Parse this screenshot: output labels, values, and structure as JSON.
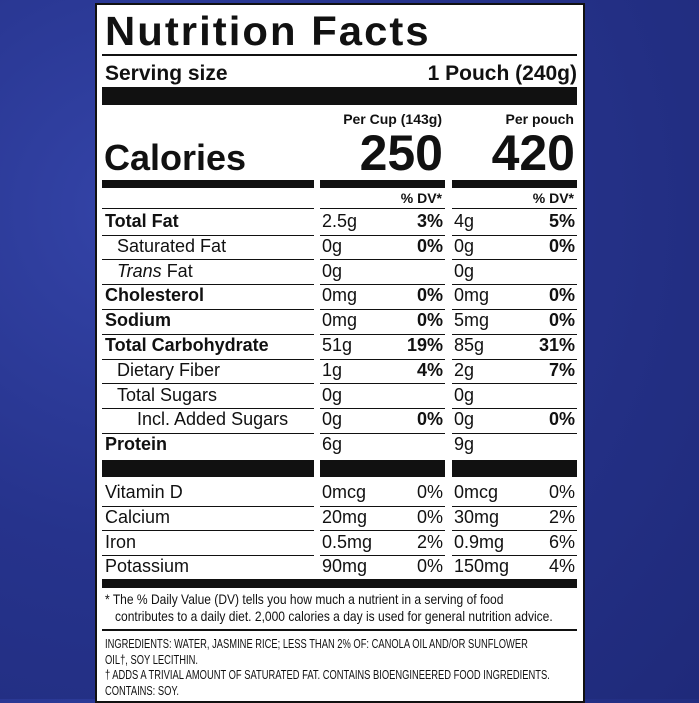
{
  "title": "Nutrition Facts",
  "serving": {
    "label": "Serving size",
    "value": "1 Pouch (240g)"
  },
  "columns": [
    "Per Cup (143g)",
    "Per pouch"
  ],
  "calories": {
    "label": "Calories",
    "values": [
      "250",
      "420"
    ]
  },
  "dv_header": [
    "% DV*",
    "% DV*"
  ],
  "nutrients": [
    {
      "name": "Total Fat",
      "bold": true,
      "indent": 0,
      "cup": {
        "amount": "2.5g",
        "dv": "3%"
      },
      "pouch": {
        "amount": "4g",
        "dv": "5%"
      }
    },
    {
      "name": "Saturated Fat",
      "bold": false,
      "indent": 1,
      "cup": {
        "amount": "0g",
        "dv": "0%"
      },
      "pouch": {
        "amount": "0g",
        "dv": "0%"
      }
    },
    {
      "italic": "Trans",
      "name": "Fat",
      "bold": false,
      "indent": 1,
      "cup": {
        "amount": "0g"
      },
      "pouch": {
        "amount": "0g"
      }
    },
    {
      "name": "Cholesterol",
      "bold": true,
      "indent": 0,
      "cup": {
        "amount": "0mg",
        "dv": "0%"
      },
      "pouch": {
        "amount": "0mg",
        "dv": "0%"
      }
    },
    {
      "name": "Sodium",
      "bold": true,
      "indent": 0,
      "cup": {
        "amount": "0mg",
        "dv": "0%"
      },
      "pouch": {
        "amount": "5mg",
        "dv": "0%"
      }
    },
    {
      "name": "Total Carbohydrate",
      "bold": true,
      "indent": 0,
      "cup": {
        "amount": "51g",
        "dv": "19%"
      },
      "pouch": {
        "amount": "85g",
        "dv": "31%"
      }
    },
    {
      "name": "Dietary Fiber",
      "bold": false,
      "indent": 1,
      "cup": {
        "amount": "1g",
        "dv": "4%"
      },
      "pouch": {
        "amount": "2g",
        "dv": "7%"
      }
    },
    {
      "name": "Total Sugars",
      "bold": false,
      "indent": 1,
      "cup": {
        "amount": "0g"
      },
      "pouch": {
        "amount": "0g"
      }
    },
    {
      "name": "Incl. Added Sugars",
      "bold": false,
      "indent": 2,
      "cup": {
        "amount": "0g",
        "dv": "0%"
      },
      "pouch": {
        "amount": "0g",
        "dv": "0%"
      }
    },
    {
      "name": "Protein",
      "bold": true,
      "indent": 0,
      "cup": {
        "amount": "6g"
      },
      "pouch": {
        "amount": "9g"
      }
    }
  ],
  "vitamins": [
    {
      "name": "Vitamin D",
      "cup": {
        "amount": "0mcg",
        "dv": "0%"
      },
      "pouch": {
        "amount": "0mcg",
        "dv": "0%"
      }
    },
    {
      "name": "Calcium",
      "cup": {
        "amount": "20mg",
        "dv": "0%"
      },
      "pouch": {
        "amount": "30mg",
        "dv": "2%"
      }
    },
    {
      "name": "Iron",
      "cup": {
        "amount": "0.5mg",
        "dv": "2%"
      },
      "pouch": {
        "amount": "0.9mg",
        "dv": "6%"
      }
    },
    {
      "name": "Potassium",
      "cup": {
        "amount": "90mg",
        "dv": "0%"
      },
      "pouch": {
        "amount": "150mg",
        "dv": "4%"
      }
    }
  ],
  "footnote": [
    "* The % Daily Value (DV) tells you how much a nutrient in a serving of food",
    "contributes to a daily diet. 2,000 calories a day is used for general nutrition advice."
  ],
  "ingredients": [
    "INGREDIENTS: WATER, JASMINE RICE; LESS THAN 2% OF: CANOLA OIL AND/OR SUNFLOWER",
    "OIL†, SOY LECITHIN.",
    "† ADDS A TRIVIAL AMOUNT OF SATURATED FAT. CONTAINS BIOENGINEERED FOOD INGREDIENTS.",
    "CONTAINS: SOY."
  ]
}
